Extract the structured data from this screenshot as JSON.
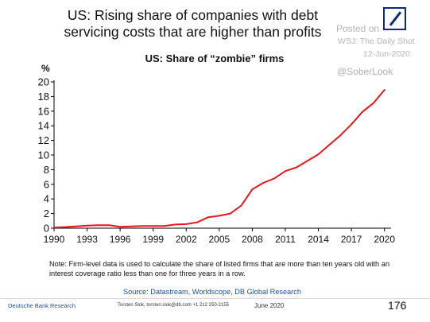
{
  "header": {
    "title_line1": "US: Rising share of companies with debt",
    "title_line2": "servicing costs that are higher than profits"
  },
  "watermark": {
    "posted": "Posted on",
    "source": "WSJ: The Daily Shot",
    "date": "12-Jun-2020",
    "handle": "@SoberLook"
  },
  "chart_data": {
    "type": "line",
    "title": "US: Share of “zombie” firms",
    "ylabel": "%",
    "xlabel": "",
    "ylim": [
      0,
      20
    ],
    "xlim": [
      1990,
      2020.6
    ],
    "yticks": [
      0,
      2,
      4,
      6,
      8,
      10,
      12,
      14,
      16,
      18,
      20
    ],
    "xticks": [
      1990,
      1993,
      1996,
      1999,
      2002,
      2005,
      2008,
      2011,
      2014,
      2017,
      2020
    ],
    "grid": false,
    "legend": "none",
    "series": [
      {
        "color": "#e8161b",
        "x": [
          1990,
          1991,
          1992,
          1993,
          1994,
          1995,
          1996,
          1997,
          1998,
          1999,
          2000,
          2001,
          2002,
          2003,
          2004,
          2005,
          2006,
          2007,
          2008,
          2009,
          2010,
          2011,
          2012,
          2013,
          2014,
          2015,
          2016,
          2017,
          2018,
          2019,
          2020
        ],
        "y": [
          0.1,
          0.15,
          0.25,
          0.35,
          0.4,
          0.4,
          0.2,
          0.25,
          0.3,
          0.3,
          0.3,
          0.5,
          0.55,
          0.8,
          1.5,
          1.7,
          2.0,
          3.1,
          5.3,
          6.2,
          6.8,
          7.8,
          8.3,
          9.2,
          10.1,
          11.4,
          12.7,
          14.2,
          15.9,
          17.1,
          18.9
        ]
      }
    ]
  },
  "note": "Note: Firm-level data is used to calculate the share of listed firms that are more than ten years old with an interest coverage ratio less than one for three years in a row.",
  "source": "Source: Datastream, Worldscope, DB Global Research",
  "footer": {
    "org": "Deutsche Bank Research",
    "contact": "Torsten Slok, torsten.slok@db.com  +1 212 250-2155",
    "month": "June 2020",
    "page": "176"
  }
}
